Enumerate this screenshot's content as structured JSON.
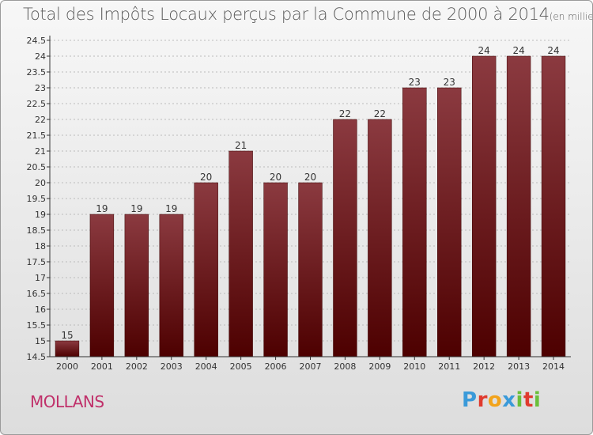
{
  "header": {
    "title": "Total des Impôts Locaux perçus par la Commune de 2000 à 2014",
    "unit": "(en milliers d'€)"
  },
  "footer": {
    "commune": "MOLLANS",
    "logo": "Proxiti",
    "logo_colors": [
      "#3a9ad9",
      "#e03a2e",
      "#f2a31b",
      "#3a9ad9",
      "#6abf3a",
      "#e03a2e",
      "#6abf3a"
    ]
  },
  "colors": {
    "bar_top": "#8b3a40",
    "bar_bottom": "#4d0000",
    "axis": "#333333",
    "grid": "#bbbbbb"
  },
  "chart_data": {
    "type": "bar",
    "title": "Total des Impôts Locaux perçus par la Commune de 2000 à 2014",
    "categories": [
      "2000",
      "2001",
      "2002",
      "2003",
      "2004",
      "2005",
      "2006",
      "2007",
      "2008",
      "2009",
      "2010",
      "2011",
      "2012",
      "2013",
      "2014"
    ],
    "values": [
      15,
      19,
      19,
      19,
      20,
      21,
      20,
      20,
      22,
      22,
      23,
      23,
      24,
      24,
      24
    ],
    "value_labels": [
      "15",
      "19",
      "19",
      "19",
      "20",
      "21",
      "20",
      "20",
      "22",
      "22",
      "23",
      "23",
      "24",
      "24",
      "24"
    ],
    "ylim": [
      14.5,
      24.5
    ],
    "yticks": [
      14.5,
      15,
      15.5,
      16,
      16.5,
      17,
      17.5,
      18,
      18.5,
      19,
      19.5,
      20,
      20.5,
      21,
      21.5,
      22,
      22.5,
      23,
      23.5,
      24,
      24.5
    ],
    "grid": true
  }
}
